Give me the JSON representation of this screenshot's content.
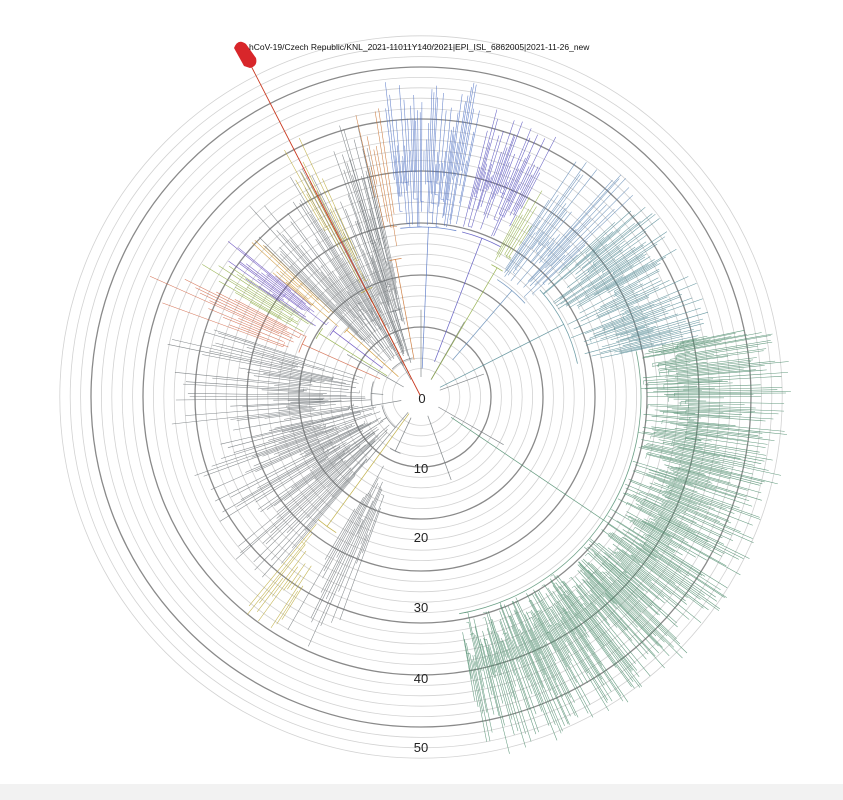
{
  "figure": {
    "highlight_label": "hCoV-19/Czech Republic/KNL_2021-11011Y140/2021|EPI_ISL_6862005|2021-11-26_new",
    "scale_ticks": [
      "0",
      "10",
      "20",
      "30",
      "40",
      "50"
    ]
  },
  "clades": [
    {
      "name": "red",
      "color": "#c9381f"
    },
    {
      "name": "gold",
      "color": "#b6a32c"
    },
    {
      "name": "grey",
      "color": "#6f7478"
    },
    {
      "name": "orange",
      "color": "#c56a25"
    },
    {
      "name": "blue",
      "color": "#4a6dc2"
    },
    {
      "name": "indigo",
      "color": "#4b47ba"
    },
    {
      "name": "olive",
      "color": "#89a83a"
    },
    {
      "name": "steel-blue",
      "color": "#5d86b3"
    },
    {
      "name": "slate-teal",
      "color": "#4f8792"
    },
    {
      "name": "green",
      "color": "#4a8a6a"
    },
    {
      "name": "salmon",
      "color": "#cf6040"
    },
    {
      "name": "purple",
      "color": "#5a3fb8"
    },
    {
      "name": "amber",
      "color": "#c98a1e"
    }
  ]
}
